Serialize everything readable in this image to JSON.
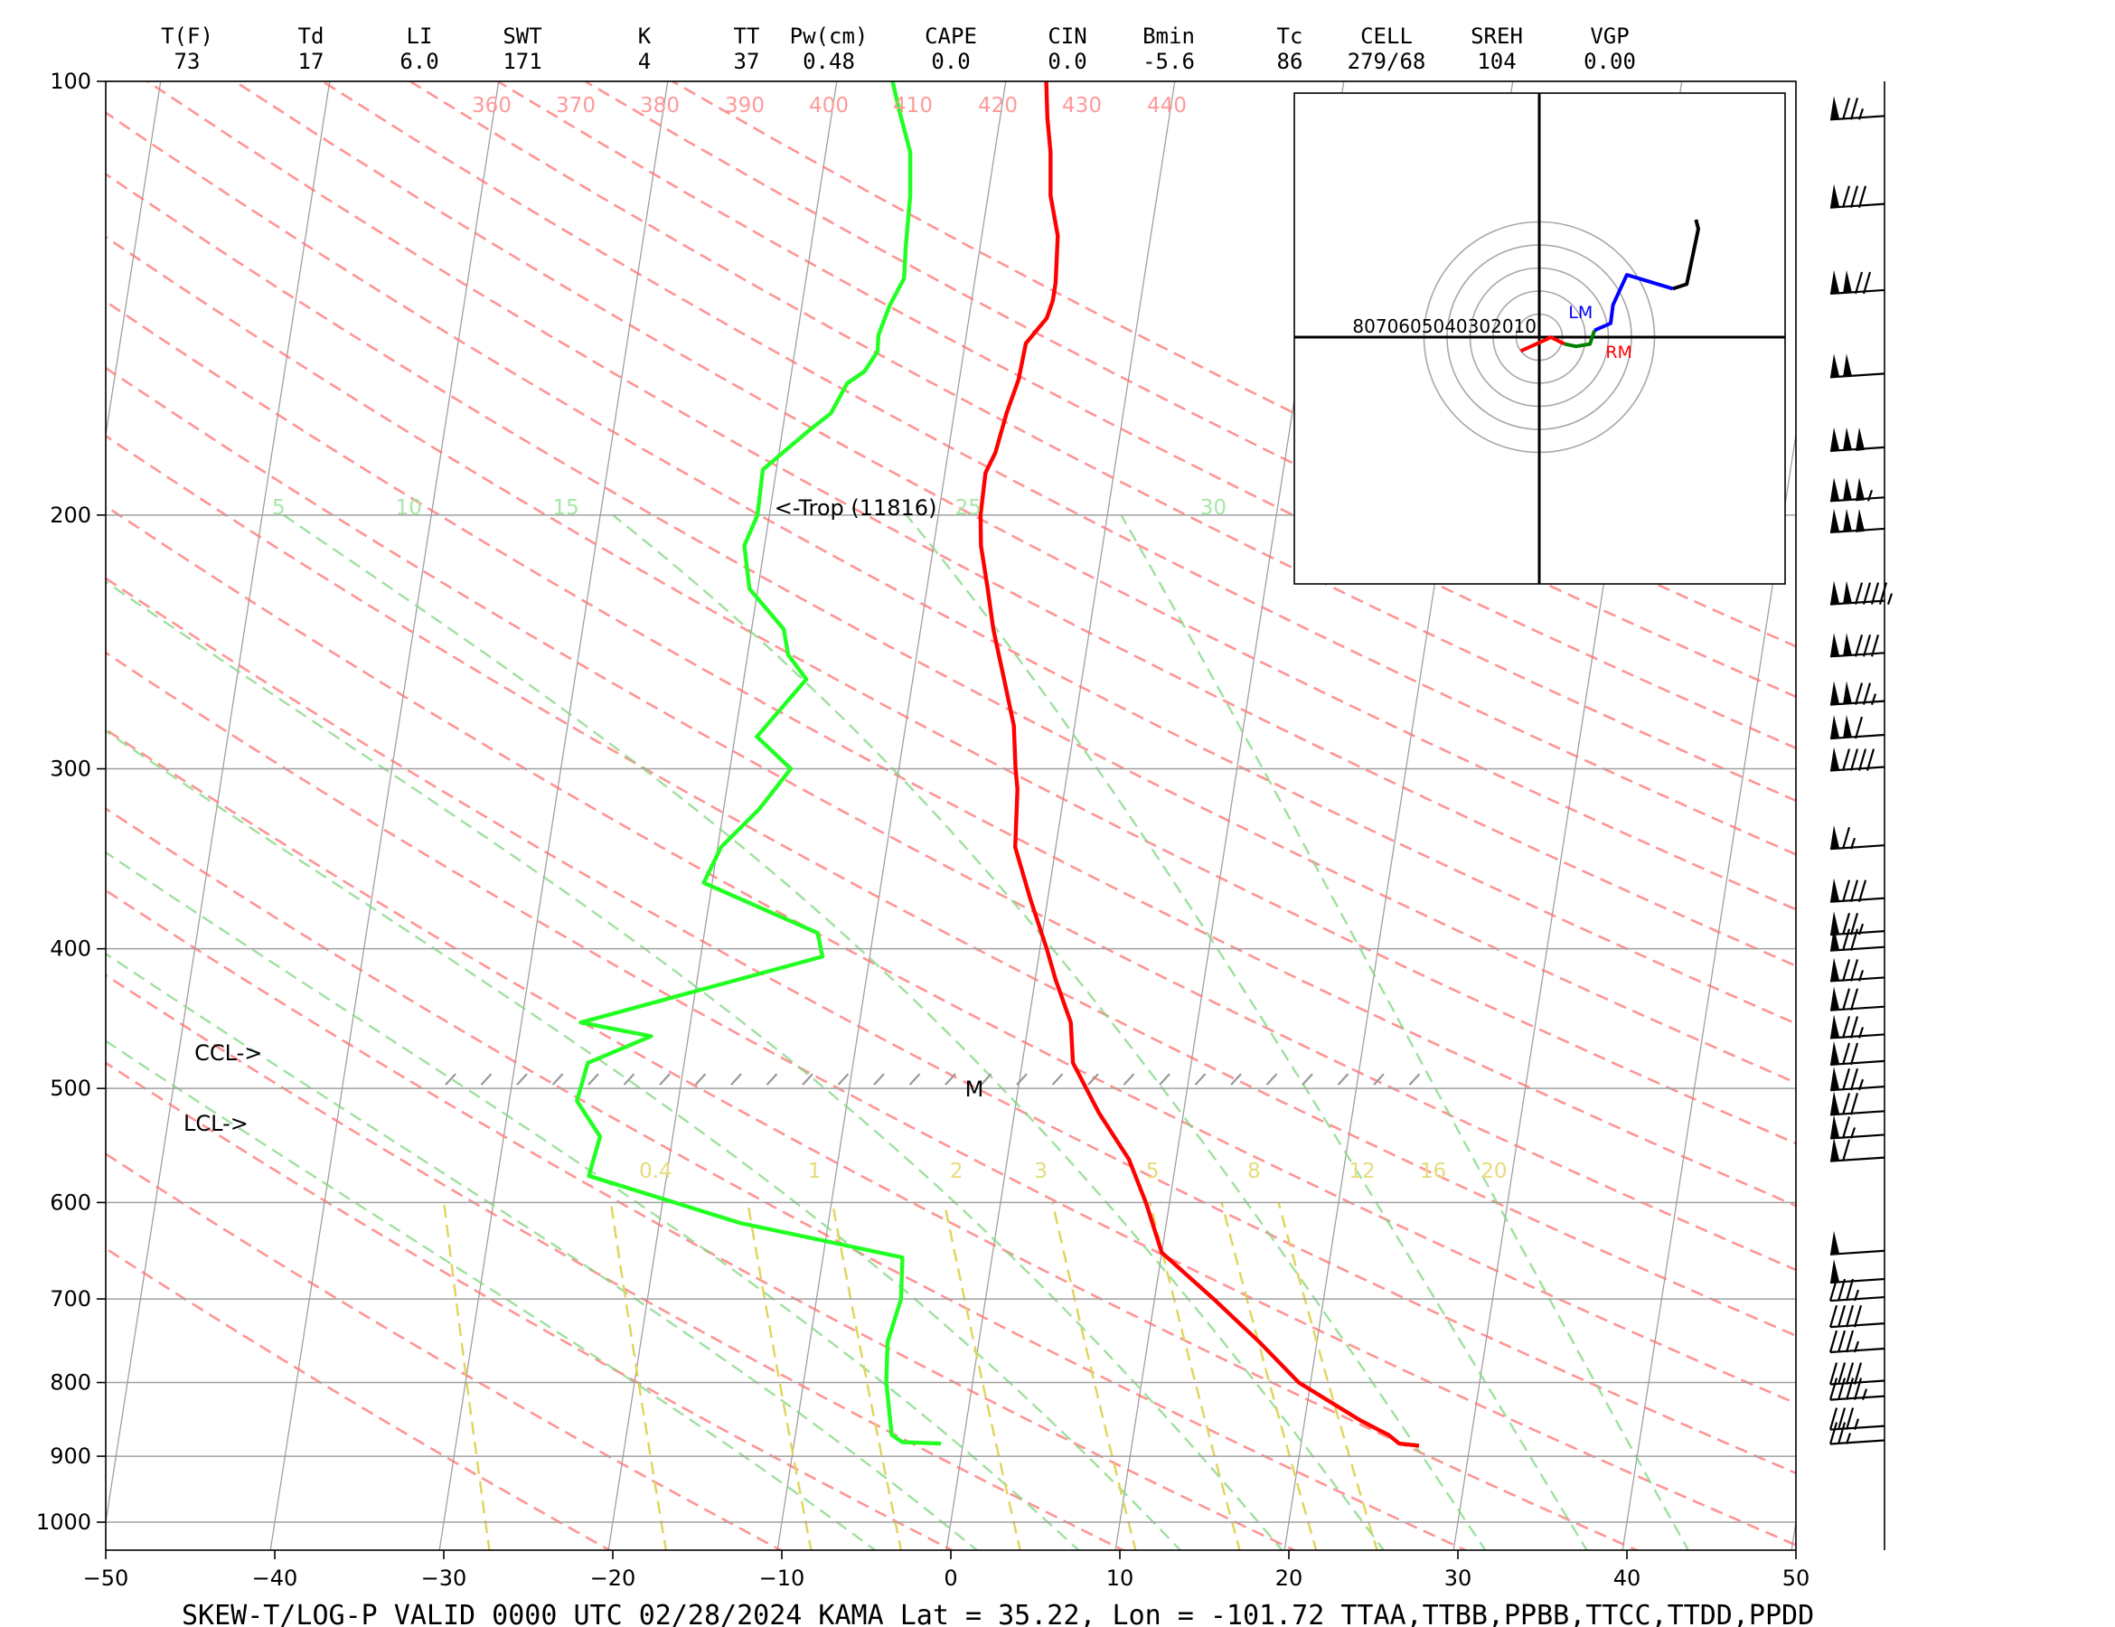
{
  "chart_data": {
    "type": "skew-t log-p",
    "title": "SKEW-T/LOG-P  VALID 0000 UTC 02/28/2024   KAMA    Lat = 35.22, Lon = -101.72    TTAA,TTBB,PPBB,TTCC,TTDD,PPDD",
    "xlim": [
      -50,
      50
    ],
    "ylim": [
      1000,
      100
    ],
    "x_ticks": [
      "−50",
      "−40",
      "−30",
      "−20",
      "−10",
      "0",
      "10",
      "20",
      "30",
      "40",
      "50"
    ],
    "y_ticks": [
      {
        "p": 100,
        "label": "100"
      },
      {
        "p": 200,
        "label": "200"
      },
      {
        "p": 300,
        "label": "300"
      },
      {
        "p": 400,
        "label": "400"
      },
      {
        "p": 500,
        "label": "500"
      },
      {
        "p": 600,
        "label": "600"
      },
      {
        "p": 700,
        "label": "700"
      },
      {
        "p": 800,
        "label": "800"
      },
      {
        "p": 900,
        "label": "900"
      },
      {
        "p": 1000,
        "label": "1000"
      }
    ],
    "indices": [
      {
        "name": "T(F)",
        "value": "73"
      },
      {
        "name": "Td",
        "value": "17"
      },
      {
        "name": "LI",
        "value": "6.0"
      },
      {
        "name": "SWT",
        "value": "171"
      },
      {
        "name": "K",
        "value": "4"
      },
      {
        "name": "TT",
        "value": "37"
      },
      {
        "name": "Pw(cm)",
        "value": "0.48"
      },
      {
        "name": "CAPE",
        "value": "0.0"
      },
      {
        "name": "CIN",
        "value": "0.0"
      },
      {
        "name": "Bmin",
        "value": "-5.6"
      },
      {
        "name": "Tc",
        "value": "86"
      },
      {
        "name": "CELL",
        "value": "279/68"
      },
      {
        "name": "SREH",
        "value": "104"
      },
      {
        "name": "VGP",
        "value": "0.00"
      }
    ],
    "dry_adiabat_labels": [
      "360",
      "370",
      "380",
      "390",
      "400",
      "410",
      "420",
      "430",
      "440"
    ],
    "moist_adiabat_labels": [
      {
        "label": "5",
        "t": -47
      },
      {
        "label": "10",
        "t": -39.3
      },
      {
        "label": "15",
        "t": -30
      },
      {
        "label": "25",
        "t": -6.2
      },
      {
        "label": "30",
        "t": 8.3
      }
    ],
    "mixing_ratio_labels": [
      {
        "label": "0.4",
        "t": -17.6
      },
      {
        "label": "1",
        "t": -8.2
      },
      {
        "label": "2",
        "t": 0.2
      },
      {
        "label": "3",
        "t": 5.2
      },
      {
        "label": "5",
        "t": 11.8
      },
      {
        "label": "8",
        "t": 17.8
      },
      {
        "label": "12",
        "t": 24.2
      },
      {
        "label": "16",
        "t": 28.4
      },
      {
        "label": "20",
        "t": 32
      }
    ],
    "annotations": [
      {
        "text": "<-Trop (11816)",
        "p": 200,
        "t": -19.7
      },
      {
        "text": "M",
        "p": 500,
        "t": -2.6
      },
      {
        "text": "CCL->",
        "p": 478,
        "t": -49
      },
      {
        "text": "LCL->",
        "p": 535,
        "t": -49
      }
    ],
    "temperature": [
      [
        885,
        27.0
      ],
      [
        882,
        25.8
      ],
      [
        870,
        25.1
      ],
      [
        850,
        23.3
      ],
      [
        800,
        19.3
      ],
      [
        750,
        16.6
      ],
      [
        700,
        13.5
      ],
      [
        650,
        10.0
      ],
      [
        600,
        8.6
      ],
      [
        560,
        7.2
      ],
      [
        520,
        5.0
      ],
      [
        480,
        3.0
      ],
      [
        450,
        2.5
      ],
      [
        420,
        1.2
      ],
      [
        400,
        0.4
      ],
      [
        370,
        -1.0
      ],
      [
        340,
        -2.4
      ],
      [
        310,
        -2.8
      ],
      [
        300,
        -3.1
      ],
      [
        280,
        -3.6
      ],
      [
        260,
        -4.6
      ],
      [
        240,
        -5.7
      ],
      [
        225,
        -6.4
      ],
      [
        210,
        -7.2
      ],
      [
        200,
        -7.5
      ],
      [
        187,
        -7.6
      ],
      [
        181,
        -7.2
      ],
      [
        170,
        -6.9
      ],
      [
        161,
        -6.5
      ],
      [
        152,
        -6.4
      ],
      [
        146,
        -5.4
      ],
      [
        142,
        -5.2
      ],
      [
        138,
        -5.2
      ],
      [
        128,
        -5.5
      ],
      [
        120,
        -6.3
      ],
      [
        112,
        -6.7
      ],
      [
        106,
        -7.2
      ],
      [
        100,
        -7.6
      ]
    ],
    "dewpoint": [
      [
        882,
        -1.3
      ],
      [
        880,
        -3.6
      ],
      [
        870,
        -4.3
      ],
      [
        800,
        -5.1
      ],
      [
        750,
        -5.4
      ],
      [
        700,
        -5.0
      ],
      [
        655,
        -5.3
      ],
      [
        620,
        -15.2
      ],
      [
        575,
        -24.6
      ],
      [
        540,
        -24.3
      ],
      [
        510,
        -26.0
      ],
      [
        480,
        -25.7
      ],
      [
        460,
        -22.2
      ],
      [
        450,
        -26.5
      ],
      [
        405,
        -12.8
      ],
      [
        390,
        -13.3
      ],
      [
        360,
        -20.5
      ],
      [
        340,
        -19.8
      ],
      [
        320,
        -17.9
      ],
      [
        300,
        -16.4
      ],
      [
        285,
        -18.7
      ],
      [
        260,
        -16.3
      ],
      [
        250,
        -17.6
      ],
      [
        240,
        -18.1
      ],
      [
        225,
        -20.5
      ],
      [
        210,
        -21.2
      ],
      [
        200,
        -20.7
      ],
      [
        186,
        -20.8
      ],
      [
        175,
        -18.5
      ],
      [
        170,
        -17.3
      ],
      [
        162,
        -16.6
      ],
      [
        159,
        -15.7
      ],
      [
        154,
        -15.1
      ],
      [
        150,
        -15.2
      ],
      [
        143,
        -14.8
      ],
      [
        137,
        -14.2
      ],
      [
        130,
        -14.4
      ],
      [
        120,
        -14.6
      ],
      [
        112,
        -15.0
      ],
      [
        105,
        -16.0
      ],
      [
        100,
        -16.7
      ]
    ],
    "hodograph": {
      "ring_labels": "8070605040302010",
      "storm_motion_labels": [
        "LM",
        "RM"
      ],
      "segments": [
        {
          "color": "#ff0000",
          "points": [
            [
              -8,
              -6
            ],
            [
              3,
              -1
            ],
            [
              5,
              0
            ],
            [
              11,
              -3
            ]
          ]
        },
        {
          "color": "#008000",
          "points": [
            [
              11,
              -3
            ],
            [
              16,
              -4
            ],
            [
              22,
              -3
            ],
            [
              24,
              3
            ]
          ]
        },
        {
          "color": "#0000ff",
          "points": [
            [
              24,
              3
            ],
            [
              31,
              6
            ],
            [
              32,
              14
            ],
            [
              38,
              27
            ],
            [
              58,
              21
            ]
          ]
        },
        {
          "color": "#000000",
          "points": [
            [
              58,
              21
            ],
            [
              64,
              23
            ],
            [
              69,
              47
            ],
            [
              68,
              51
            ]
          ]
        }
      ],
      "lm_marker": [
        26,
        2
      ],
      "rm_marker": [
        17,
        -2
      ]
    },
    "wind_barbs": [
      {
        "p": 880,
        "speed": 25
      },
      {
        "p": 860,
        "speed": 35
      },
      {
        "p": 820,
        "speed": 45
      },
      {
        "p": 800,
        "speed": 40
      },
      {
        "p": 760,
        "speed": 35
      },
      {
        "p": 730,
        "speed": 40
      },
      {
        "p": 700,
        "speed": 35
      },
      {
        "p": 680,
        "speed": 50
      },
      {
        "p": 650,
        "speed": 50
      },
      {
        "p": 560,
        "speed": 60
      },
      {
        "p": 540,
        "speed": 65
      },
      {
        "p": 520,
        "speed": 70
      },
      {
        "p": 500,
        "speed": 75
      },
      {
        "p": 480,
        "speed": 70
      },
      {
        "p": 460,
        "speed": 75
      },
      {
        "p": 440,
        "speed": 70
      },
      {
        "p": 420,
        "speed": 75
      },
      {
        "p": 400,
        "speed": 70
      },
      {
        "p": 390,
        "speed": 75
      },
      {
        "p": 370,
        "speed": 80
      },
      {
        "p": 340,
        "speed": 65
      },
      {
        "p": 300,
        "speed": 90
      },
      {
        "p": 285,
        "speed": 110
      },
      {
        "p": 270,
        "speed": 125
      },
      {
        "p": 250,
        "speed": 130
      },
      {
        "p": 230,
        "speed": 145
      },
      {
        "p": 205,
        "speed": 150
      },
      {
        "p": 195,
        "speed": 155
      },
      {
        "p": 180,
        "speed": 150
      },
      {
        "p": 160,
        "speed": 100
      },
      {
        "p": 140,
        "speed": 120
      },
      {
        "p": 122,
        "speed": 80
      },
      {
        "p": 106,
        "speed": 75
      }
    ]
  }
}
